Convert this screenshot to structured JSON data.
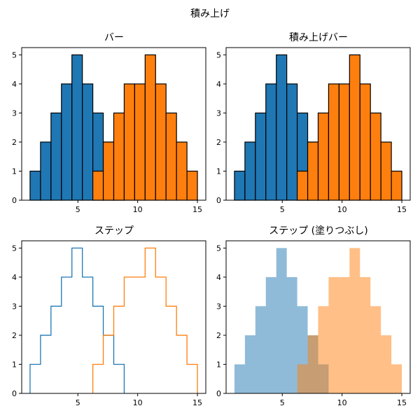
{
  "figure": {
    "suptitle": "積み上げ"
  },
  "chart_data": [
    {
      "type": "bar",
      "histtype": "bar",
      "title": "バー",
      "bin_edges": [
        1,
        1.875,
        2.75,
        3.625,
        4.5,
        5.375,
        6.25,
        7.125,
        8,
        8.875,
        9.75,
        10.625,
        11.5,
        12.375,
        13.25,
        14.125,
        15
      ],
      "series": [
        {
          "values": [
            1,
            2,
            3,
            4,
            5,
            4,
            3,
            2,
            1,
            0,
            0,
            0,
            0,
            0,
            0,
            0
          ],
          "color": "#1f77b4"
        },
        {
          "values": [
            0,
            0,
            0,
            0,
            0,
            0,
            1,
            2,
            3,
            4,
            4,
            5,
            4,
            3,
            2,
            1
          ],
          "color": "#ff7f0e"
        }
      ],
      "stacked": false,
      "xlim": [
        0.3,
        15.7
      ],
      "ylim": [
        0,
        5.25
      ],
      "xticks": [
        5,
        10,
        15
      ],
      "yticks": [
        0,
        1,
        2,
        3,
        4,
        5
      ],
      "grid": false
    },
    {
      "type": "bar",
      "histtype": "barstacked",
      "title": "積み上げバー",
      "bin_edges": [
        1,
        1.875,
        2.75,
        3.625,
        4.5,
        5.375,
        6.25,
        7.125,
        8,
        8.875,
        9.75,
        10.625,
        11.5,
        12.375,
        13.25,
        14.125,
        15
      ],
      "series": [
        {
          "values": [
            1,
            2,
            3,
            4,
            5,
            4,
            3,
            2,
            1,
            0,
            0,
            0,
            0,
            0,
            0,
            0
          ],
          "color": "#1f77b4"
        },
        {
          "values": [
            0,
            0,
            0,
            0,
            0,
            0,
            1,
            2,
            3,
            4,
            4,
            5,
            4,
            3,
            2,
            1
          ],
          "color": "#ff7f0e"
        }
      ],
      "stacked": false,
      "xlim": [
        0.3,
        15.7
      ],
      "ylim": [
        0,
        5.25
      ],
      "xticks": [
        5,
        10,
        15
      ],
      "yticks": [
        0,
        1,
        2,
        3,
        4,
        5
      ],
      "grid": false
    },
    {
      "type": "line",
      "histtype": "step",
      "title": "ステップ",
      "bin_edges": [
        1,
        1.875,
        2.75,
        3.625,
        4.5,
        5.375,
        6.25,
        7.125,
        8,
        8.875,
        9.75,
        10.625,
        11.5,
        12.375,
        13.25,
        14.125,
        15
      ],
      "series": [
        {
          "values": [
            1,
            2,
            3,
            4,
            5,
            4,
            3,
            2,
            1,
            0,
            0,
            0,
            0,
            0,
            0,
            0
          ],
          "color": "#1f77b4"
        },
        {
          "values": [
            0,
            0,
            0,
            0,
            0,
            0,
            1,
            2,
            3,
            4,
            4,
            5,
            4,
            3,
            2,
            1
          ],
          "color": "#ff7f0e"
        }
      ],
      "xlim": [
        0.3,
        15.7
      ],
      "ylim": [
        0,
        5.25
      ],
      "xticks": [
        5,
        10,
        15
      ],
      "yticks": [
        0,
        1,
        2,
        3,
        4,
        5
      ],
      "grid": false
    },
    {
      "type": "area",
      "histtype": "stepfilled",
      "title": "ステップ (塗りつぶし)",
      "bin_edges": [
        1,
        1.875,
        2.75,
        3.625,
        4.5,
        5.375,
        6.25,
        7.125,
        8,
        8.875,
        9.75,
        10.625,
        11.5,
        12.375,
        13.25,
        14.125,
        15
      ],
      "series": [
        {
          "values": [
            1,
            2,
            3,
            4,
            5,
            4,
            3,
            2,
            1,
            0,
            0,
            0,
            0,
            0,
            0,
            0
          ],
          "color": "#1f77b4",
          "alpha": 0.5
        },
        {
          "values": [
            0,
            0,
            0,
            0,
            0,
            0,
            1,
            2,
            3,
            4,
            4,
            5,
            4,
            3,
            2,
            1
          ],
          "color": "#ff7f0e",
          "alpha": 0.5
        }
      ],
      "xlim": [
        0.3,
        15.7
      ],
      "ylim": [
        0,
        5.25
      ],
      "xticks": [
        5,
        10,
        15
      ],
      "yticks": [
        0,
        1,
        2,
        3,
        4,
        5
      ],
      "grid": false
    }
  ]
}
